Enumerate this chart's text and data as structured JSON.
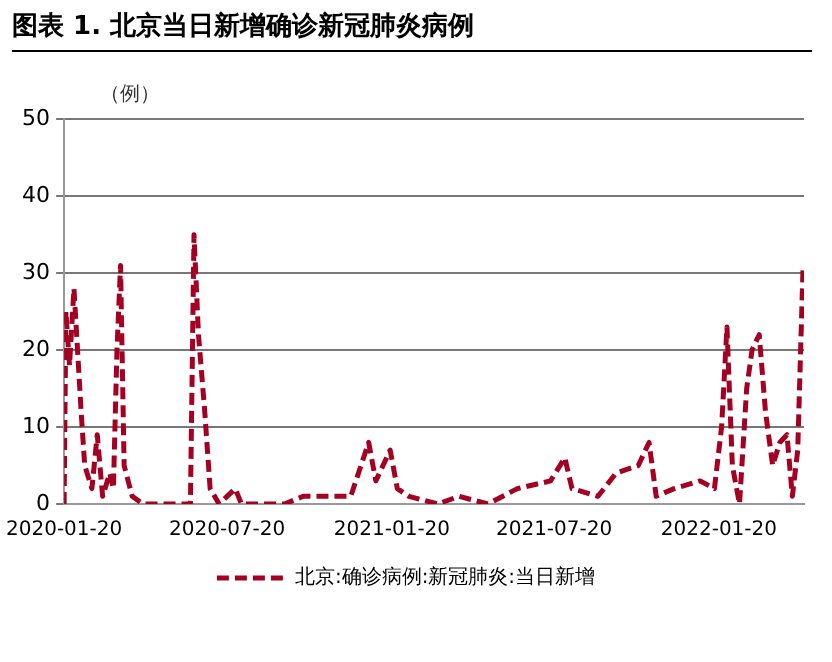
{
  "chart_data": {
    "type": "line",
    "title": "图表 1. 北京当日新增确诊新冠肺炎病例",
    "ylabel": "（例）",
    "xlim": [
      "2020-01-20",
      "2022-04-25"
    ],
    "xticks": [
      "2020-01-20",
      "2020-07-20",
      "2021-01-20",
      "2021-07-20",
      "2022-01-20"
    ],
    "ylim": [
      0,
      50
    ],
    "yticks": [
      0,
      10,
      20,
      30,
      40,
      50
    ],
    "grid": "y",
    "legend": "bottom",
    "line_style": "dashed",
    "marker": "none",
    "series": [
      {
        "name": "北京:确诊病例:新冠肺炎:当日新增",
        "color": "#a50021",
        "x": [
          "2020-01-20",
          "2020-01-22",
          "2020-01-26",
          "2020-01-31",
          "2020-02-04",
          "2020-02-08",
          "2020-02-12",
          "2020-02-20",
          "2020-02-26",
          "2020-03-03",
          "2020-03-11",
          "2020-03-15",
          "2020-03-19",
          "2020-03-23",
          "2020-03-27",
          "2020-04-05",
          "2020-04-17",
          "2020-05-31",
          "2020-06-09",
          "2020-06-13",
          "2020-06-18",
          "2020-06-25",
          "2020-07-01",
          "2020-07-11",
          "2020-07-29",
          "2020-08-05",
          "2020-09-22",
          "2020-10-13",
          "2020-11-02",
          "2020-12-05",
          "2020-12-25",
          "2021-01-02",
          "2021-01-18",
          "2021-01-26",
          "2021-02-08",
          "2021-03-12",
          "2021-04-05",
          "2021-05-07",
          "2021-06-09",
          "2021-07-16",
          "2021-08-01",
          "2021-08-09",
          "2021-09-07",
          "2021-09-27",
          "2021-10-22",
          "2021-11-03",
          "2021-11-11",
          "2021-12-01",
          "2021-12-30",
          "2022-01-15",
          "2022-01-23",
          "2022-01-29",
          "2022-02-04",
          "2022-02-12",
          "2022-02-20",
          "2022-02-26",
          "2022-03-06",
          "2022-03-13",
          "2022-03-21",
          "2022-03-29",
          "2022-04-06",
          "2022-04-12",
          "2022-04-18",
          "2022-04-24"
        ],
        "values": [
          0,
          25,
          18,
          28,
          20,
          12,
          5,
          2,
          9,
          1,
          4,
          2,
          20,
          31,
          5,
          1,
          0,
          0,
          0,
          35,
          22,
          12,
          2,
          0,
          2,
          0,
          0,
          1,
          1,
          1,
          8,
          3,
          7,
          2,
          1,
          0,
          1,
          0,
          2,
          3,
          6,
          2,
          1,
          4,
          5,
          8,
          1,
          2,
          3,
          2,
          10,
          23,
          5,
          0,
          15,
          20,
          22,
          12,
          5,
          8,
          9,
          1,
          7,
          31
        ]
      }
    ]
  }
}
